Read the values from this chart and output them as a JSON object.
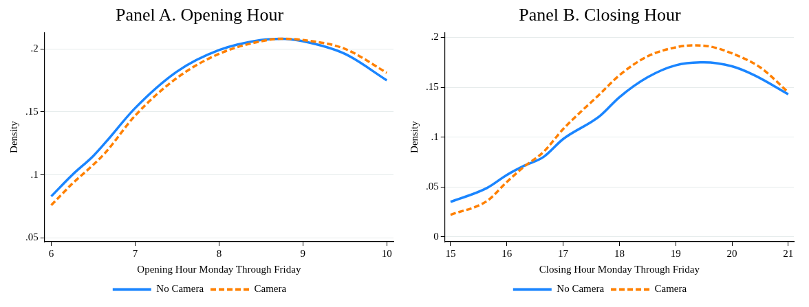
{
  "chart_data": [
    {
      "type": "line",
      "title": "Panel A. Opening Hour",
      "xlabel": "Opening Hour Monday Through Friday",
      "ylabel": "Density",
      "xlim": [
        5.92,
        10.08
      ],
      "xticks": [
        6,
        7,
        8,
        9,
        10
      ],
      "ylim": [
        0.047,
        0.213
      ],
      "yticks": [
        {
          "value": 0.05,
          "label": ".05"
        },
        {
          "value": 0.1,
          "label": ".1"
        },
        {
          "value": 0.15,
          "label": ".15"
        },
        {
          "value": 0.2,
          "label": ".2"
        }
      ],
      "grid": "y",
      "legend": "bottom",
      "marker": "none",
      "series": [
        {
          "name": "No Camera",
          "color": "#1a85ff",
          "line_style": "solid",
          "x": [
            6,
            6.25,
            6.5,
            6.65,
            7,
            7.5,
            8,
            8.5,
            8.75,
            9,
            9.5,
            10
          ],
          "values": [
            0.083,
            0.1,
            0.115,
            0.126,
            0.153,
            0.182,
            0.199,
            0.207,
            0.208,
            0.206,
            0.196,
            0.175
          ]
        },
        {
          "name": "Camera",
          "color": "#ff8000",
          "line_style": "dashed",
          "x": [
            6,
            6.25,
            6.5,
            6.65,
            7,
            7.5,
            8,
            8.5,
            8.75,
            9,
            9.5,
            10
          ],
          "values": [
            0.076,
            0.093,
            0.108,
            0.118,
            0.147,
            0.177,
            0.196,
            0.206,
            0.208,
            0.207,
            0.2,
            0.181
          ]
        }
      ]
    },
    {
      "type": "line",
      "title": "Panel B. Closing Hour",
      "xlabel": "Closing Hour Monday Through Friday",
      "ylabel": "Density",
      "xlim": [
        14.9,
        21.1
      ],
      "xticks": [
        15,
        16,
        17,
        18,
        19,
        20,
        21
      ],
      "ylim": [
        -0.005,
        0.205
      ],
      "yticks": [
        {
          "value": 0,
          "label": "0"
        },
        {
          "value": 0.05,
          "label": ".05"
        },
        {
          "value": 0.1,
          "label": ".1"
        },
        {
          "value": 0.15,
          "label": ".15"
        },
        {
          "value": 0.2,
          "label": ".2"
        }
      ],
      "grid": "y",
      "legend": "bottom",
      "marker": "none",
      "series": [
        {
          "name": "No Camera",
          "color": "#1a85ff",
          "line_style": "solid",
          "x": [
            15,
            15.65,
            16,
            16.3,
            16.65,
            17,
            17.65,
            18,
            18.5,
            19,
            19.5,
            20,
            20.4,
            21
          ],
          "values": [
            0.035,
            0.049,
            0.062,
            0.071,
            0.08,
            0.098,
            0.121,
            0.14,
            0.16,
            0.172,
            0.175,
            0.171,
            0.162,
            0.143
          ]
        },
        {
          "name": "Camera",
          "color": "#ff8000",
          "line_style": "dashed",
          "x": [
            15,
            15.65,
            16,
            16.3,
            16.65,
            17,
            17.65,
            18,
            18.5,
            19,
            19.3,
            19.6,
            20,
            20.5,
            21
          ],
          "values": [
            0.022,
            0.036,
            0.055,
            0.07,
            0.085,
            0.108,
            0.143,
            0.162,
            0.181,
            0.19,
            0.192,
            0.191,
            0.184,
            0.17,
            0.145
          ]
        }
      ]
    }
  ]
}
